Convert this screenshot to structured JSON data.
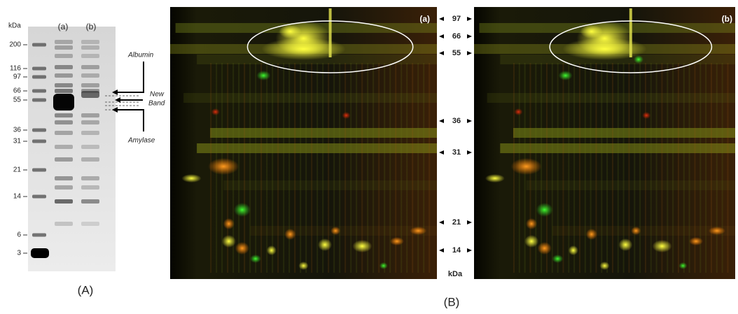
{
  "panel_a": {
    "unit": "kDa",
    "lane_labels": [
      "(a)",
      "(b)"
    ],
    "markers": [
      "200",
      "116",
      "97",
      "66",
      "55",
      "36",
      "31",
      "21",
      "14",
      "6",
      "3"
    ],
    "annotations": {
      "albumin": "Albumin",
      "new_band": [
        "New",
        "Band"
      ],
      "amylase": "Amylase"
    },
    "caption": "(A)"
  },
  "panel_b": {
    "image_labels": [
      "(a)",
      "(b)"
    ],
    "markers": [
      "97",
      "66",
      "55",
      "36",
      "31",
      "21",
      "14"
    ],
    "unit": "kDa",
    "caption": "(B)"
  }
}
